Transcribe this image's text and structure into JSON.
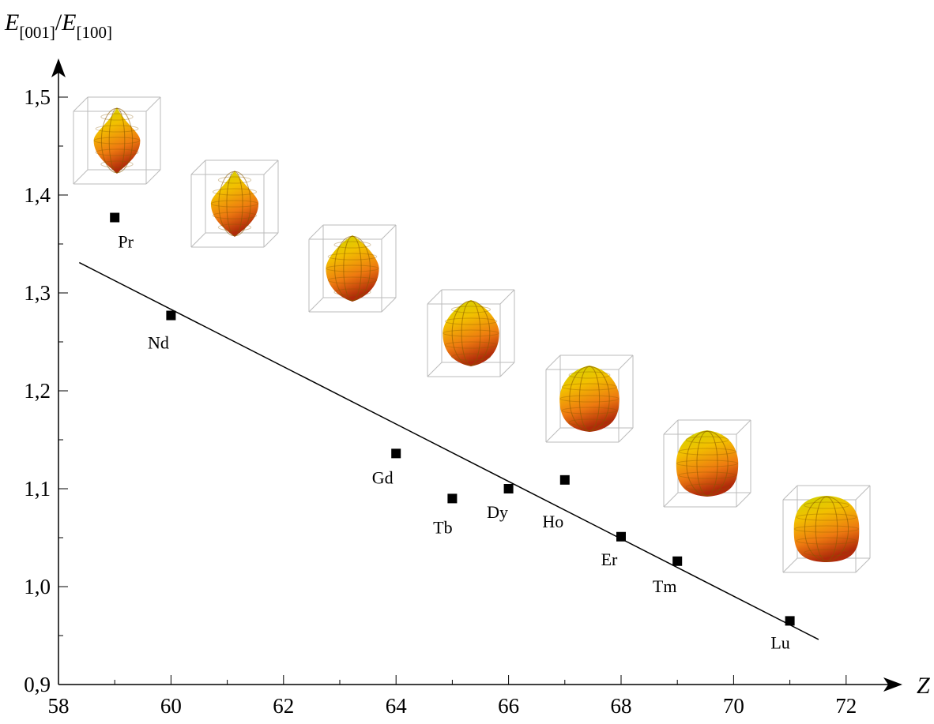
{
  "chart_data": {
    "type": "scatter",
    "xlabel": "Z",
    "ylabel": [
      "E",
      "[001]",
      "/",
      "E",
      "[100]"
    ],
    "labels": [
      "Pr",
      "Nd",
      "Gd",
      "Tb",
      "Dy",
      "Ho",
      "Er",
      "Tm",
      "Lu"
    ],
    "x": [
      59,
      60,
      64,
      65,
      66,
      67,
      68,
      69,
      71
    ],
    "values": [
      1.377,
      1.277,
      1.136,
      1.09,
      1.1,
      1.109,
      1.051,
      1.026,
      0.965
    ],
    "color": "#000000",
    "fit": {
      "x": [
        58.37,
        71.51
      ],
      "y": [
        1.331,
        0.946
      ]
    },
    "xlim": [
      58,
      73
    ],
    "ylim": [
      0.9,
      1.54
    ],
    "xticks": [
      58,
      60,
      62,
      64,
      66,
      68,
      70,
      72
    ],
    "xminorticks": [
      59,
      61,
      63,
      65,
      67,
      69,
      71
    ],
    "yticks": [
      {
        "value": 0.9,
        "label": "0,9"
      },
      {
        "value": 1.0,
        "label": "1,0"
      },
      {
        "value": 1.1,
        "label": "1,1"
      },
      {
        "value": 1.2,
        "label": "1,2"
      },
      {
        "value": 1.3,
        "label": "1,3"
      },
      {
        "value": 1.4,
        "label": "1,4"
      },
      {
        "value": 1.5,
        "label": "1,5"
      }
    ],
    "yminorticks": [
      0.95,
      1.05,
      1.15,
      1.25,
      1.35,
      1.45
    ]
  }
}
